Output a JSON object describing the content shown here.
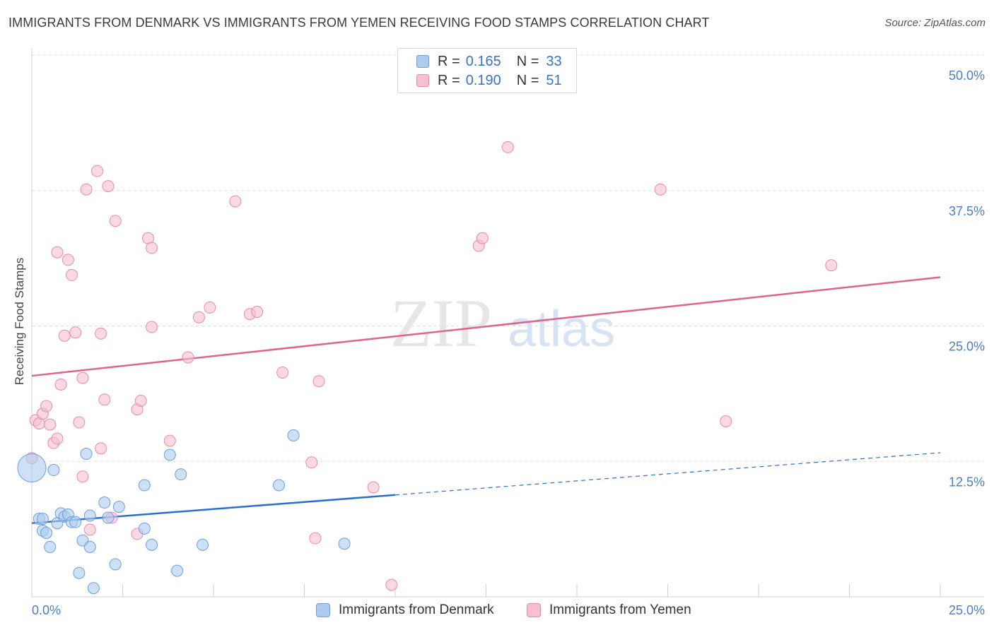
{
  "title": "IMMIGRANTS FROM DENMARK VS IMMIGRANTS FROM YEMEN RECEIVING FOOD STAMPS CORRELATION CHART",
  "source": "Source: ZipAtlas.com",
  "watermark": {
    "zip": "ZIP",
    "atlas": "atlas"
  },
  "legend": {
    "r_label": "R =",
    "n_label": "N =",
    "rows": [
      {
        "r": "0.165",
        "n": "33"
      },
      {
        "r": "0.190",
        "n": "51"
      }
    ]
  },
  "bottom_legend": [
    "Immigrants from Denmark",
    "Immigrants from Yemen"
  ],
  "colors": {
    "denmark_fill": "#aecbef",
    "denmark_stroke": "#6a9fe0",
    "denmark_line": "#2a6fcf",
    "yemen_fill": "#f7bfd0",
    "yemen_stroke": "#e88aa8",
    "yemen_line": "#e0638e"
  },
  "chart_data": {
    "type": "scatter",
    "title": "IMMIGRANTS FROM DENMARK VS IMMIGRANTS FROM YEMEN RECEIVING FOOD STAMPS CORRELATION CHART",
    "xlabel": "",
    "ylabel": "Receiving Food Stamps",
    "xlim": [
      0,
      25
    ],
    "ylim": [
      0,
      50
    ],
    "x_tick_labels": [
      "0.0%",
      "25.0%"
    ],
    "y_ticks": [
      12.5,
      25.0,
      37.5,
      50.0
    ],
    "y_tick_labels": [
      "12.5%",
      "25.0%",
      "37.5%",
      "50.0%"
    ],
    "grid": true,
    "series": [
      {
        "name": "Immigrants from Denmark",
        "R": 0.165,
        "N": 33,
        "trend": {
          "x0": 0,
          "y0": 6.8,
          "x1": 10,
          "y1": 9.4,
          "dashed_to_x": 25,
          "dashed_to_y": 13.3
        },
        "points": [
          [
            0.0,
            11.9,
            "large"
          ],
          [
            0.2,
            7.2
          ],
          [
            0.3,
            7.2
          ],
          [
            0.3,
            6.1
          ],
          [
            0.4,
            5.9
          ],
          [
            0.5,
            4.6
          ],
          [
            0.6,
            11.7
          ],
          [
            0.7,
            6.8
          ],
          [
            0.8,
            7.7
          ],
          [
            0.9,
            7.4
          ],
          [
            1.0,
            7.6
          ],
          [
            1.1,
            6.9
          ],
          [
            1.2,
            6.9
          ],
          [
            1.3,
            2.2
          ],
          [
            1.4,
            5.2
          ],
          [
            1.5,
            13.2
          ],
          [
            1.6,
            7.5
          ],
          [
            1.6,
            4.6
          ],
          [
            1.7,
            0.8
          ],
          [
            2.0,
            8.7
          ],
          [
            2.1,
            7.3
          ],
          [
            2.3,
            3.0
          ],
          [
            2.4,
            8.3
          ],
          [
            3.1,
            6.3
          ],
          [
            3.1,
            10.3
          ],
          [
            3.3,
            4.8
          ],
          [
            3.8,
            13.1
          ],
          [
            4.0,
            2.4
          ],
          [
            4.1,
            11.3
          ],
          [
            4.7,
            4.8
          ],
          [
            6.8,
            10.3
          ],
          [
            7.2,
            14.9
          ],
          [
            8.6,
            4.9
          ]
        ]
      },
      {
        "name": "Immigrants from Yemen",
        "R": 0.19,
        "N": 51,
        "trend": {
          "x0": 0,
          "y0": 20.4,
          "x1": 25,
          "y1": 29.5
        },
        "points": [
          [
            0.0,
            12.8
          ],
          [
            0.1,
            16.3
          ],
          [
            0.2,
            16.0
          ],
          [
            0.3,
            16.9
          ],
          [
            0.4,
            17.6
          ],
          [
            0.5,
            15.9
          ],
          [
            0.6,
            14.2
          ],
          [
            0.7,
            14.6
          ],
          [
            0.7,
            31.8
          ],
          [
            0.8,
            19.6
          ],
          [
            0.9,
            24.1
          ],
          [
            1.0,
            31.1
          ],
          [
            1.1,
            29.7
          ],
          [
            1.2,
            24.4
          ],
          [
            1.3,
            16.1
          ],
          [
            1.4,
            20.2
          ],
          [
            1.4,
            11.1
          ],
          [
            1.5,
            37.6
          ],
          [
            1.6,
            6.2
          ],
          [
            1.8,
            39.3
          ],
          [
            1.9,
            24.3
          ],
          [
            1.9,
            13.7
          ],
          [
            2.0,
            18.2
          ],
          [
            2.1,
            37.9
          ],
          [
            2.2,
            7.3
          ],
          [
            2.3,
            34.7
          ],
          [
            2.9,
            17.3
          ],
          [
            2.9,
            5.8
          ],
          [
            3.0,
            18.1
          ],
          [
            3.2,
            33.1
          ],
          [
            3.3,
            32.2
          ],
          [
            3.3,
            24.9
          ],
          [
            3.8,
            14.4
          ],
          [
            4.3,
            22.1
          ],
          [
            4.6,
            25.8
          ],
          [
            4.9,
            26.7
          ],
          [
            5.6,
            36.5
          ],
          [
            6.0,
            26.1
          ],
          [
            6.2,
            26.3
          ],
          [
            6.9,
            20.7
          ],
          [
            7.7,
            12.4
          ],
          [
            7.8,
            5.4
          ],
          [
            7.9,
            19.9
          ],
          [
            9.4,
            10.1
          ],
          [
            9.9,
            1.1
          ],
          [
            12.3,
            32.4
          ],
          [
            12.4,
            33.1
          ],
          [
            13.1,
            41.5
          ],
          [
            17.3,
            37.6
          ],
          [
            19.1,
            16.2
          ],
          [
            22.0,
            30.6
          ]
        ]
      }
    ]
  }
}
